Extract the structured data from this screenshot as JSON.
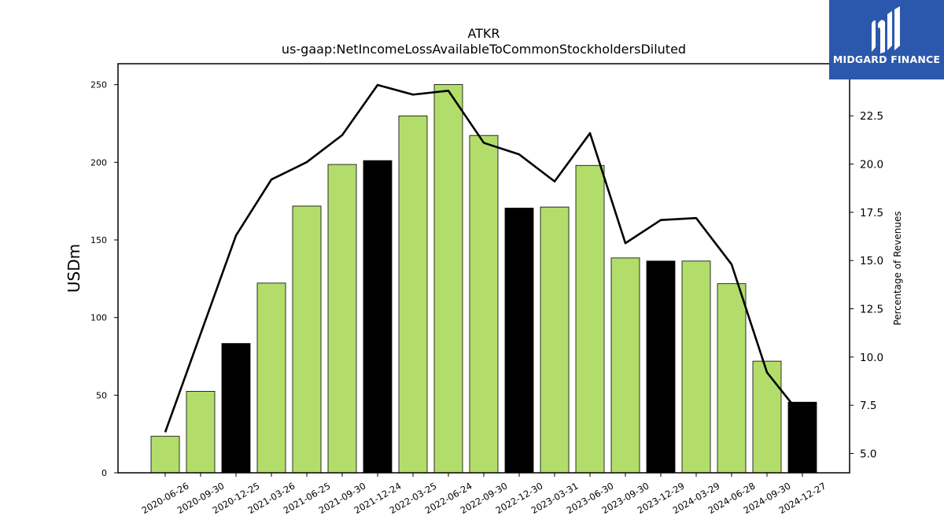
{
  "chart_data": {
    "type": "bar",
    "title": "ATKR",
    "subtitle": "us-gaap:NetIncomeLossAvailableToCommonStockholdersDiluted",
    "ylabel": "USDm",
    "y2label": "Percentage of Revenues",
    "categories": [
      "2020-06-26",
      "2020-09-30",
      "2020-12-25",
      "2021-03-26",
      "2021-06-25",
      "2021-09-30",
      "2021-12-24",
      "2022-03-25",
      "2022-06-24",
      "2022-09-30",
      "2022-12-30",
      "2023-03-31",
      "2023-06-30",
      "2023-09-30",
      "2023-12-29",
      "2024-03-29",
      "2024-06-28",
      "2024-09-30",
      "2024-12-27"
    ],
    "series": [
      {
        "values": [
          23.5,
          52.5,
          83.3,
          122.2,
          171.8,
          198.6,
          201.1,
          229.9,
          250.1,
          217.3,
          170.5,
          171.2,
          198.0,
          138.4,
          136.4,
          136.4,
          121.8,
          71.9,
          45.5
        ],
        "axis": "left",
        "colors": [
          "#b2dd6b",
          "#b2dd6b",
          "#000000",
          "#b2dd6b",
          "#b2dd6b",
          "#b2dd6b",
          "#000000",
          "#b2dd6b",
          "#b2dd6b",
          "#b2dd6b",
          "#000000",
          "#b2dd6b",
          "#b2dd6b",
          "#b2dd6b",
          "#000000",
          "#b2dd6b",
          "#b2dd6b",
          "#b2dd6b",
          "#000000"
        ]
      },
      {
        "type": "line",
        "axis": "right",
        "color": "#000000",
        "values": [
          6.1,
          11.2,
          16.3,
          19.2,
          20.1,
          21.5,
          24.1,
          23.6,
          23.8,
          21.1,
          20.5,
          19.1,
          21.6,
          15.9,
          17.1,
          17.2,
          14.8,
          9.2,
          6.9
        ]
      }
    ],
    "ylim": [
      0,
      263.5
    ],
    "yticks": [
      0,
      50,
      100,
      150,
      200,
      250
    ],
    "y2lim": [
      4.0,
      25.2
    ],
    "y2ticks": [
      "5.0",
      "7.5",
      "10.0",
      "12.5",
      "15.0",
      "17.5",
      "20.0",
      "22.5"
    ],
    "grid": false
  },
  "logo": {
    "text": "MIDGARD FINANCE"
  }
}
